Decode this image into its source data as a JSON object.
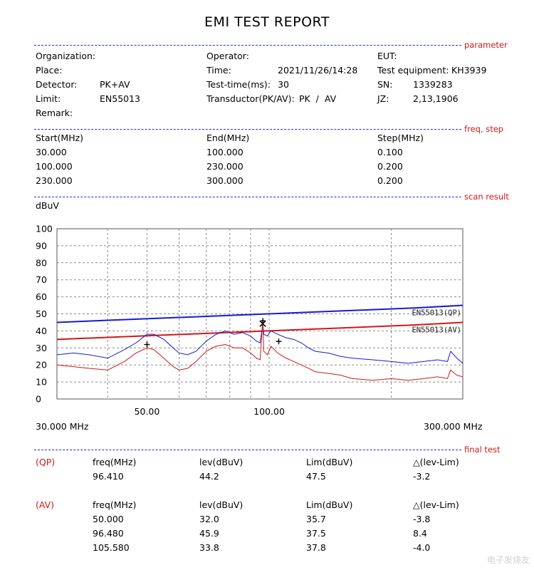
{
  "title": "EMI TEST REPORT",
  "sections": {
    "parameter": "parameter",
    "freq_step": "freq, step",
    "scan_result": "scan result",
    "final_test": "final test"
  },
  "parameter": {
    "organization_label": "Organization:",
    "operator_label": "Operator:",
    "eut_label": "EUT:",
    "place_label": "Place:",
    "time_label": "Time:",
    "time_value": "2021/11/26/14:28",
    "test_equipment_label": "Test equipment:",
    "test_equipment_value": "KH3939",
    "detector_label": "Detector:",
    "detector_value": "PK+AV",
    "test_time_label": "Test-time(ms):",
    "test_time_value": "30",
    "sn_label": "SN:",
    "sn_value": "1339283",
    "limit_label": "Limit:",
    "limit_value": "EN55013",
    "transductor_label": "Transductor(PK/AV):",
    "transductor_value": "PK  /  AV",
    "jz_label": "JZ:",
    "jz_value": "2,13,1906",
    "remark_label": "Remark:"
  },
  "freq_step": {
    "headers": [
      "Start(MHz)",
      "End(MHz)",
      "Step(MHz)"
    ],
    "rows": [
      [
        "30.000",
        "100.000",
        "0.100"
      ],
      [
        "100.000",
        "230.000",
        "0.200"
      ],
      [
        "230.000",
        "300.000",
        "0.200"
      ]
    ]
  },
  "final_test": {
    "qp": {
      "tag": "(QP)",
      "headers": [
        "freq(MHz)",
        "lev(dBuV)",
        "Lim(dBuV)",
        "△(lev-Lim)"
      ],
      "rows": [
        [
          "96.410",
          "44.2",
          "47.5",
          "-3.2"
        ]
      ]
    },
    "av": {
      "tag": "(AV)",
      "headers": [
        "freq(MHz)",
        "lev(dBuV)",
        "Lim(dBuV)",
        "△(lev-Lim)"
      ],
      "rows": [
        [
          "50.000",
          "32.0",
          "35.7",
          "-3.8"
        ],
        [
          "96.480",
          "45.9",
          "37.5",
          "8.4"
        ],
        [
          "105.580",
          "33.8",
          "37.8",
          "-4.0"
        ]
      ]
    }
  },
  "chart_data": {
    "type": "line",
    "ylabel": "dBuV",
    "xscale": "log",
    "xlim": [
      30,
      300
    ],
    "ylim": [
      0,
      100
    ],
    "yticks": [
      0,
      10,
      20,
      30,
      40,
      50,
      60,
      70,
      80,
      90,
      100
    ],
    "xtick_labels": [
      "50.00",
      "100.00"
    ],
    "xtick_values": [
      50,
      100
    ],
    "x_start_label": "30.000 MHz",
    "x_end_label": "300.000 MHz",
    "grid": true,
    "limits": [
      {
        "name": "EN55013(QP)",
        "color": "#1a1ad0",
        "x": [
          30,
          230,
          300
        ],
        "y": [
          45,
          53.5,
          55
        ]
      },
      {
        "name": "EN55013(AV)",
        "color": "#d01818",
        "x": [
          30,
          230,
          300
        ],
        "y": [
          35,
          43.5,
          45
        ]
      }
    ],
    "series": [
      {
        "color": "#1a1ad0",
        "x": [
          30,
          33,
          36,
          40,
          44,
          47,
          50,
          52,
          55,
          58,
          60,
          63,
          66,
          70,
          74,
          78,
          82,
          86,
          90,
          93,
          95,
          96.4,
          97,
          99,
          101,
          105,
          110,
          115,
          120,
          125,
          130,
          140,
          150,
          160,
          180,
          200,
          220,
          240,
          260,
          275,
          280,
          290,
          300
        ],
        "y": [
          26,
          27,
          26,
          24,
          29,
          33,
          38,
          38,
          35,
          30,
          27,
          26,
          28,
          34,
          38,
          40,
          38,
          39,
          37,
          34,
          33,
          44,
          38,
          37,
          40,
          38,
          36,
          35,
          33,
          30,
          28,
          27,
          25,
          24,
          23,
          22,
          21,
          22,
          23,
          22,
          28,
          24,
          21
        ]
      },
      {
        "color": "#d01818",
        "x": [
          30,
          33,
          36,
          40,
          44,
          47,
          50,
          52,
          55,
          58,
          60,
          63,
          66,
          70,
          74,
          78,
          82,
          86,
          90,
          93,
          95,
          96.4,
          97,
          99,
          101,
          105,
          110,
          115,
          120,
          125,
          130,
          140,
          150,
          160,
          180,
          200,
          220,
          240,
          260,
          275,
          280,
          290,
          300
        ],
        "y": [
          20,
          19,
          18,
          17,
          22,
          27,
          30,
          29,
          24,
          19,
          17,
          18,
          22,
          28,
          31,
          32,
          30,
          30,
          27,
          24,
          23,
          46,
          28,
          26,
          31,
          27,
          24,
          22,
          20,
          18,
          16,
          15,
          14,
          12,
          11,
          12,
          11,
          12,
          13,
          12,
          17,
          14,
          13
        ]
      }
    ],
    "markers": [
      {
        "label": "QP 96.410",
        "x": 96.41,
        "y": 44.2,
        "symbol": "x"
      },
      {
        "label": "AV 50.000",
        "x": 50.0,
        "y": 32.0,
        "symbol": "+"
      },
      {
        "label": "AV 96.480",
        "x": 96.48,
        "y": 45.9,
        "symbol": "+"
      },
      {
        "label": "AV 105.580",
        "x": 105.58,
        "y": 33.8,
        "symbol": "+"
      }
    ]
  },
  "watermark": "电子发烧友"
}
